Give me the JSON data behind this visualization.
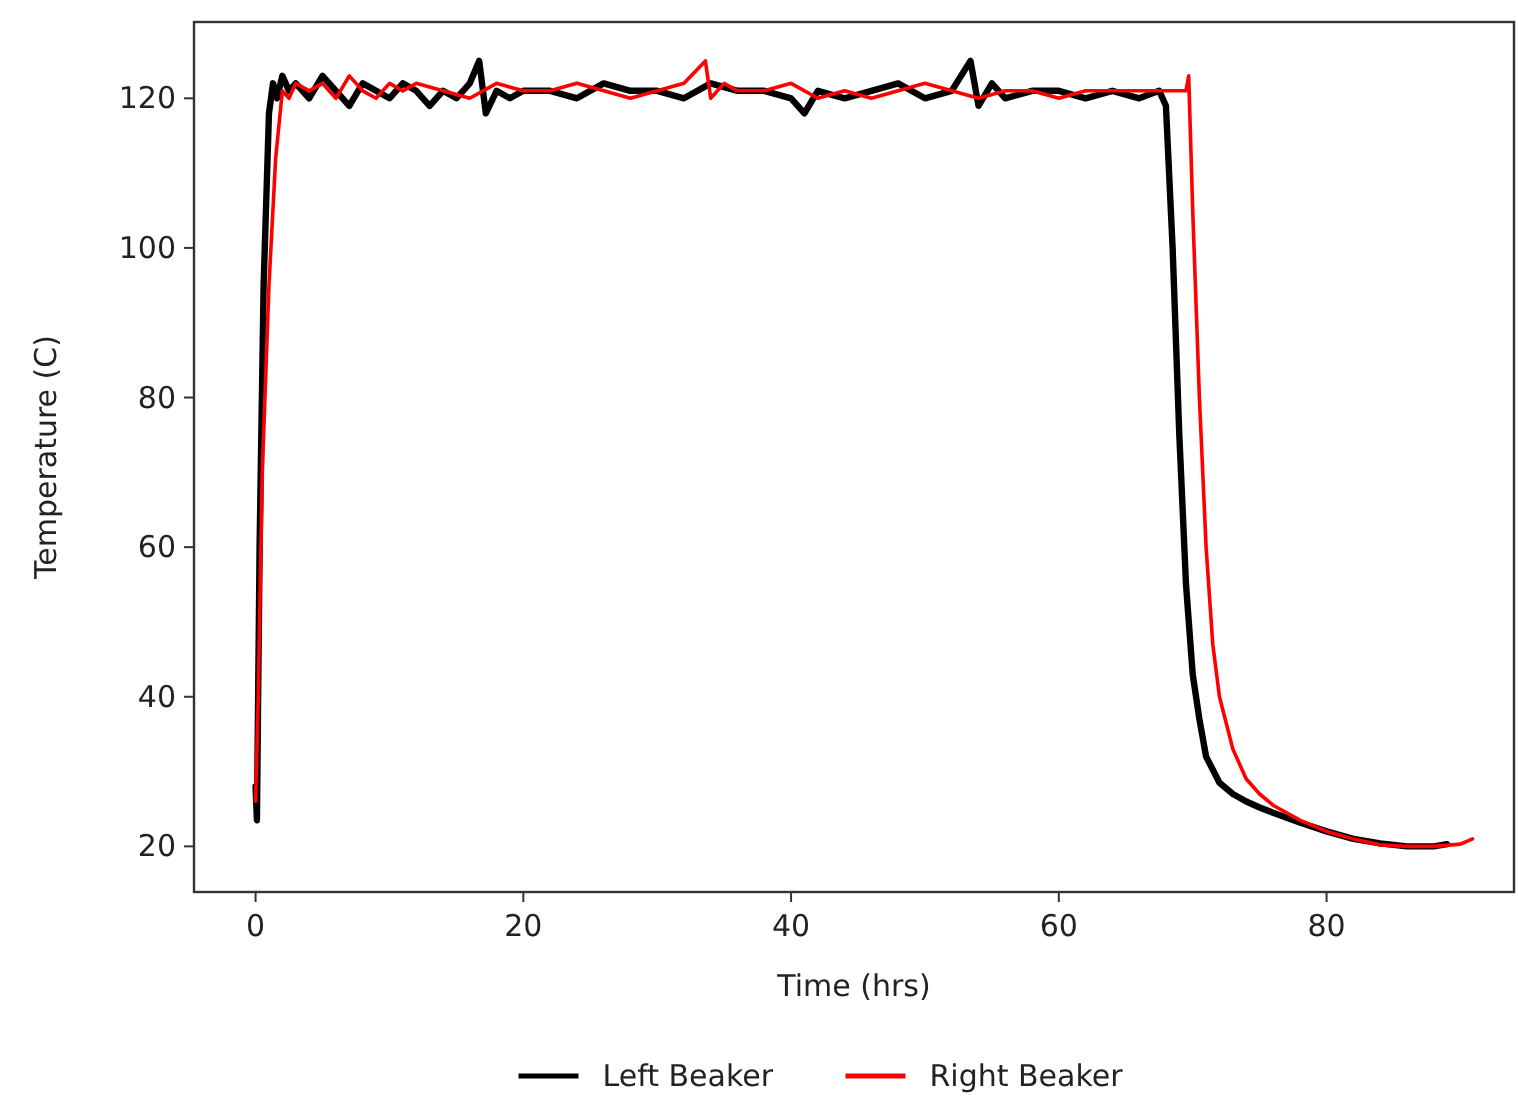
{
  "chart_data": {
    "type": "line",
    "xlabel": "Time (hrs)",
    "ylabel": "Temperature (C)",
    "xlim": [
      -4.6,
      94
    ],
    "xticks": [
      0,
      20,
      40,
      60,
      80
    ],
    "ylim": [
      13.9,
      130.2
    ],
    "yticks": [
      20,
      40,
      60,
      80,
      100,
      120
    ],
    "grid": false,
    "legend": "bottom",
    "marker": "none",
    "line_style": "solid",
    "series": [
      {
        "name": "Left Beaker",
        "color": "#000000",
        "x": [
          0,
          0.1,
          0.3,
          0.6,
          1.0,
          1.3,
          1.6,
          2,
          2.5,
          3,
          4,
          5,
          6,
          7,
          8,
          9,
          10,
          11,
          12,
          13,
          14,
          15,
          16,
          16.7,
          17.2,
          18,
          19,
          20,
          22,
          24,
          26,
          28,
          30,
          32,
          34,
          36,
          38,
          40,
          41,
          42,
          44,
          46,
          48,
          50,
          52,
          53.4,
          54,
          55,
          56,
          58,
          60,
          62,
          64,
          66,
          67.5,
          68,
          68.5,
          69,
          69.5,
          70,
          70.5,
          71,
          72,
          73,
          74,
          75,
          76,
          78,
          80,
          82,
          84,
          86,
          88,
          89
        ],
        "values": [
          28,
          23.5,
          60,
          95,
          118,
          122,
          120,
          123,
          121,
          122,
          120,
          123,
          121,
          119,
          122,
          121,
          120,
          122,
          121,
          119,
          121,
          120,
          122,
          125,
          118,
          121,
          120,
          121,
          121,
          120,
          122,
          121,
          121,
          120,
          122,
          121,
          121,
          120,
          118,
          121,
          120,
          121,
          122,
          120,
          121,
          125,
          119,
          122,
          120,
          121,
          121,
          120,
          121,
          120,
          121,
          119,
          100,
          75,
          55,
          43,
          37,
          32,
          28.5,
          27,
          26,
          25.2,
          24.5,
          23.2,
          22,
          21,
          20.4,
          20,
          20,
          20.3
        ]
      },
      {
        "name": "Right Beaker",
        "color": "#ff0000",
        "x": [
          0,
          0.2,
          0.5,
          1,
          1.5,
          2,
          2.5,
          3,
          4,
          5,
          6,
          7,
          8,
          9,
          10,
          11,
          12,
          14,
          16,
          18,
          20,
          22,
          24,
          26,
          28,
          30,
          32,
          33.6,
          34,
          35,
          36,
          38,
          40,
          42,
          44,
          46,
          48,
          50,
          52,
          54,
          56,
          58,
          60,
          62,
          64,
          66,
          68,
          69,
          69.5,
          69.7,
          70,
          70.5,
          71,
          71.5,
          72,
          73,
          74,
          75,
          76,
          78,
          80,
          82,
          84,
          86,
          88,
          90,
          90.9
        ],
        "values": [
          26,
          40,
          70,
          95,
          112,
          121,
          120,
          122,
          121,
          122,
          120,
          123,
          121,
          120,
          122,
          121,
          122,
          121,
          120,
          122,
          121,
          121,
          122,
          121,
          120,
          121,
          122,
          125,
          120,
          122,
          121,
          121,
          122,
          120,
          121,
          120,
          121,
          122,
          121,
          120,
          121,
          121,
          120,
          121,
          121,
          121,
          121,
          121,
          121,
          123,
          105,
          80,
          60,
          47,
          40,
          33,
          29,
          27,
          25.5,
          23.5,
          22,
          21,
          20.2,
          20,
          20,
          20.3,
          21
        ]
      }
    ]
  }
}
